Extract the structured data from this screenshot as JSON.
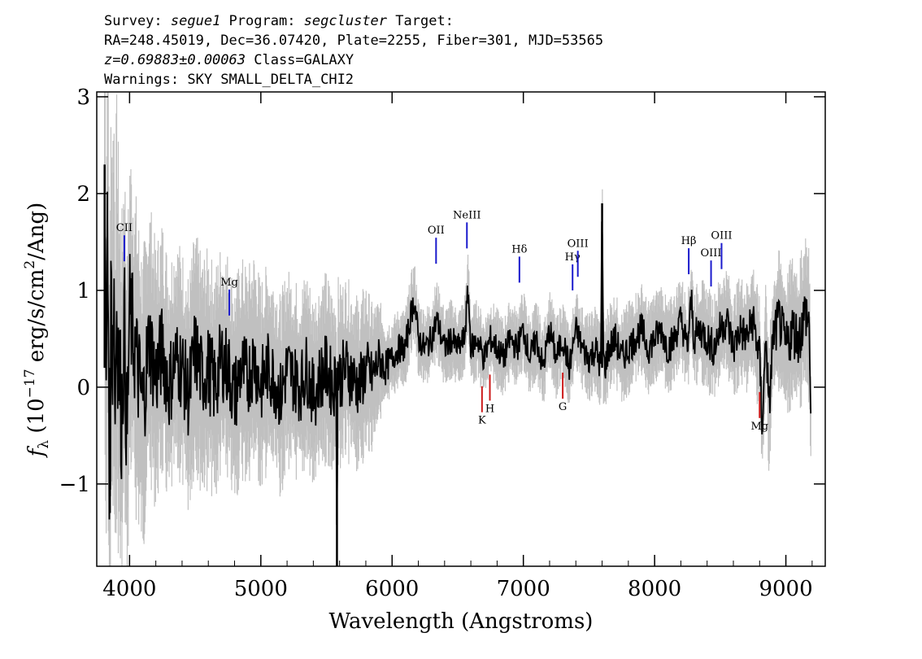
{
  "header": {
    "line1": {
      "survey_label": "Survey: ",
      "survey": "segue1",
      "program_label": " Program: ",
      "program": "segcluster",
      "target_label": " Target:"
    },
    "line2": "RA=248.45019, Dec=36.07420, Plate=2255, Fiber=301, MJD=53565",
    "line3": {
      "z": "z=0.69883±0.00063",
      "rest": " Class=GALAXY"
    },
    "line4": "Warnings: SKY SMALL_DELTA_CHI2"
  },
  "chart_data": {
    "type": "line",
    "xlabel": "Wavelength (Angstroms)",
    "ylabel": "f_λ (10^-17 erg/s/cm^2/Ang)",
    "xlim": [
      3750,
      9300
    ],
    "ylim": [
      -1.85,
      3.05
    ],
    "xticks": [
      "4000",
      "5000",
      "6000",
      "7000",
      "8000",
      "9000"
    ],
    "yticks": [
      "−1",
      "0",
      "1",
      "2",
      "3"
    ],
    "colors": {
      "flux": "#000000",
      "error": "#c0c0c0",
      "emission": "#1a1acc",
      "absorption": "#cc1a1a"
    },
    "series": [
      {
        "role": "flux",
        "x": [
          3810,
          3820,
          3830,
          3840,
          3850,
          3860,
          3870,
          3880,
          3890,
          3900,
          3920,
          3940,
          3960,
          3980,
          4000,
          4050,
          4100,
          4150,
          4200,
          4250,
          4300,
          4350,
          4400,
          4450,
          4500,
          4550,
          4600,
          4650,
          4700,
          4750,
          4800,
          4850,
          4900,
          4950,
          5000,
          5050,
          5100,
          5150,
          5200,
          5250,
          5300,
          5350,
          5400,
          5450,
          5500,
          5550,
          5575,
          5580,
          5585,
          5600,
          5650,
          5700,
          5750,
          5800,
          5850,
          5900,
          5950,
          6000,
          6050,
          6100,
          6150,
          6170,
          6200,
          6250,
          6300,
          6340,
          6400,
          6450,
          6500,
          6550,
          6580,
          6600,
          6650,
          6700,
          6750,
          6800,
          6850,
          6900,
          6950,
          7000,
          7050,
          7100,
          7150,
          7200,
          7250,
          7300,
          7350,
          7400,
          7450,
          7500,
          7550,
          7590,
          7600,
          7610,
          7620,
          7650,
          7700,
          7750,
          7800,
          7850,
          7900,
          7950,
          8000,
          8050,
          8100,
          8150,
          8200,
          8250,
          8280,
          8300,
          8350,
          8400,
          8450,
          8500,
          8550,
          8600,
          8650,
          8700,
          8750,
          8800,
          8820,
          8850,
          8870,
          8900,
          8950,
          9000,
          9050,
          9100,
          9150,
          9180,
          9190
        ],
        "y": [
          2.3,
          -0.5,
          1.5,
          0.6,
          -1.3,
          1.3,
          0.3,
          1.2,
          -0.3,
          0.9,
          0.2,
          -0.3,
          0.7,
          -0.6,
          0.8,
          0.3,
          -0.2,
          0.5,
          0.1,
          0.4,
          0.0,
          0.3,
          0.2,
          -0.1,
          0.4,
          0.1,
          0.2,
          0.0,
          0.3,
          0.2,
          -0.1,
          0.2,
          0.1,
          0.3,
          0.0,
          0.2,
          0.1,
          -0.1,
          0.2,
          0.1,
          0.0,
          0.2,
          -0.1,
          0.1,
          0.2,
          0.0,
          0.1,
          -1.85,
          0.2,
          0.1,
          0.2,
          0.1,
          0.0,
          0.2,
          0.1,
          0.3,
          0.2,
          0.3,
          0.4,
          0.4,
          0.8,
          0.9,
          0.5,
          0.4,
          0.5,
          0.7,
          0.4,
          0.5,
          0.4,
          0.5,
          1.0,
          0.4,
          0.5,
          0.3,
          0.5,
          0.4,
          0.3,
          0.5,
          0.4,
          0.6,
          0.3,
          0.5,
          0.2,
          0.6,
          0.3,
          0.5,
          0.2,
          0.6,
          0.4,
          0.3,
          0.4,
          0.2,
          1.9,
          0.3,
          0.2,
          0.4,
          0.5,
          0.3,
          0.4,
          0.5,
          0.6,
          0.4,
          0.5,
          0.6,
          0.4,
          0.5,
          0.7,
          0.4,
          0.9,
          0.5,
          0.6,
          0.5,
          0.4,
          0.6,
          0.7,
          0.4,
          0.6,
          0.5,
          0.7,
          0.3,
          -0.4,
          0.6,
          -0.3,
          0.5,
          0.7,
          0.4,
          0.6,
          0.5,
          0.8,
          0.6,
          -0.3
        ]
      },
      {
        "role": "error",
        "x": [
          3810,
          3900,
          4000,
          4200,
          4400,
          4600,
          4800,
          5000,
          5200,
          5400,
          5600,
          5800,
          5900,
          6000,
          6200,
          6400,
          6600,
          6800,
          7000,
          7200,
          7400,
          7600,
          7800,
          8000,
          8200,
          8400,
          8600,
          8800,
          9000,
          9190
        ],
        "y": [
          1.8,
          1.6,
          1.3,
          1.0,
          0.9,
          0.9,
          0.85,
          0.8,
          0.75,
          0.75,
          0.7,
          0.65,
          0.45,
          0.3,
          0.3,
          0.3,
          0.3,
          0.3,
          0.3,
          0.3,
          0.3,
          0.35,
          0.35,
          0.35,
          0.35,
          0.4,
          0.4,
          0.45,
          0.55,
          0.6
        ]
      }
    ],
    "annotations": [
      {
        "label": "CII",
        "x": 3960,
        "type": "emission"
      },
      {
        "label": "Mg",
        "x": 4760,
        "type": "emission"
      },
      {
        "label": "OII",
        "x": 6335,
        "type": "emission"
      },
      {
        "label": "NeIII",
        "x": 6570,
        "type": "emission"
      },
      {
        "label": "Hδ",
        "x": 6970,
        "type": "emission"
      },
      {
        "label": "Hγ",
        "x": 7375,
        "type": "emission"
      },
      {
        "label": "OIII",
        "x": 7415,
        "type": "emission"
      },
      {
        "label": "Hβ",
        "x": 8260,
        "type": "emission"
      },
      {
        "label": "OIII",
        "x": 8430,
        "type": "emission"
      },
      {
        "label": "OIII",
        "x": 8510,
        "type": "emission"
      },
      {
        "label": "K",
        "x": 6685,
        "type": "absorption"
      },
      {
        "label": "H",
        "x": 6745,
        "type": "absorption"
      },
      {
        "label": "G",
        "x": 7300,
        "type": "absorption"
      },
      {
        "label": "Mg",
        "x": 8800,
        "type": "absorption"
      }
    ]
  }
}
